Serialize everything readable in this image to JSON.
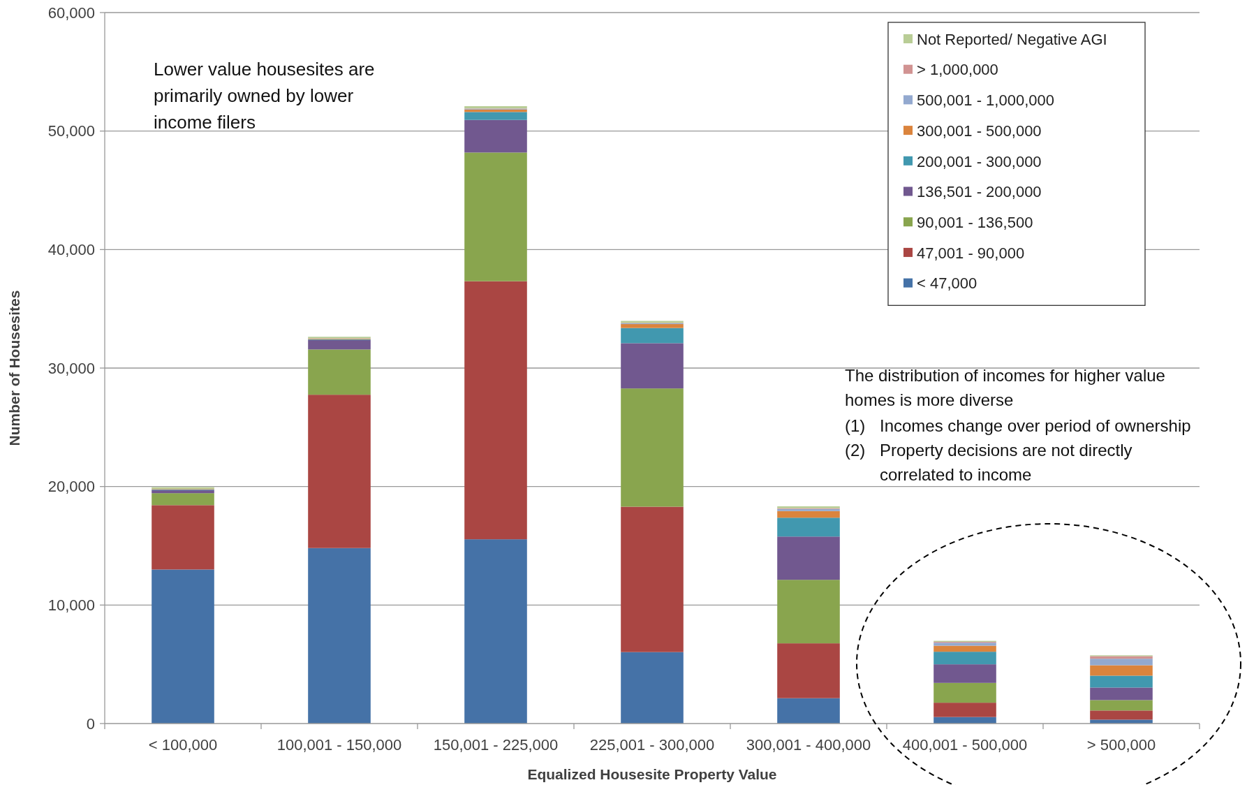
{
  "chart_data": {
    "type": "bar",
    "stacked": true,
    "xlabel": "Equalized Housesite Property Value",
    "ylabel": "Number of Housesites",
    "categories": [
      "< 100,000",
      "100,001 - 150,000",
      "150,001 - 225,000",
      "225,001 - 300,000",
      "300,001 - 400,000",
      "400,001 - 500,000",
      "> 500,000"
    ],
    "series": [
      {
        "name": "< 47,000",
        "color": "#4572a7",
        "values": [
          13000,
          14810,
          15550,
          6030,
          2140,
          550,
          330
        ]
      },
      {
        "name": "47,001 - 90,000",
        "color": "#aa4643",
        "values": [
          5430,
          12940,
          21780,
          12270,
          4630,
          1210,
          770
        ]
      },
      {
        "name": "90,001 - 136,500",
        "color": "#89a54e",
        "values": [
          1010,
          3820,
          10860,
          9980,
          5360,
          1670,
          880
        ]
      },
      {
        "name": "136,501 - 200,000",
        "color": "#71588f",
        "values": [
          260,
          800,
          2750,
          3820,
          3650,
          1570,
          1060
        ]
      },
      {
        "name": "200,001 - 300,000",
        "color": "#4198af",
        "values": [
          50,
          60,
          670,
          1280,
          1590,
          1060,
          1000
        ]
      },
      {
        "name": "300,001 - 500,000",
        "color": "#db843d",
        "values": [
          40,
          50,
          210,
          330,
          560,
          510,
          880
        ]
      },
      {
        "name": "500,001 - 1,000,000",
        "color": "#93a9cf",
        "values": [
          null,
          20,
          60,
          70,
          180,
          250,
          550
        ]
      },
      {
        "name": "> 1,000,000",
        "color": "#d19392",
        "values": [
          10,
          10,
          30,
          30,
          60,
          80,
          220
        ]
      },
      {
        "name": "Not Reported/ Negative AGI",
        "color": "#b9cd96",
        "values": [
          150,
          130,
          190,
          170,
          160,
          80,
          70
        ]
      }
    ],
    "ylim": [
      0,
      60000
    ],
    "yticks": [
      {
        "value": 0,
        "label": "0"
      },
      {
        "value": 10000,
        "label": "10,000"
      },
      {
        "value": 20000,
        "label": "20,000"
      },
      {
        "value": 30000,
        "label": "30,000"
      },
      {
        "value": 40000,
        "label": "40,000"
      },
      {
        "value": 50000,
        "label": "50,000"
      },
      {
        "value": 60000,
        "label": "60,000"
      }
    ],
    "grid": "y",
    "legend": "top right",
    "annotations": [
      "Lower value housesites are primarily owned by lower income filers",
      "The distribution of incomes for higher value homes is more diverse",
      "(1)  Incomes change over period of ownership",
      "(2)  Property decisions are not directly correlated to income"
    ]
  }
}
